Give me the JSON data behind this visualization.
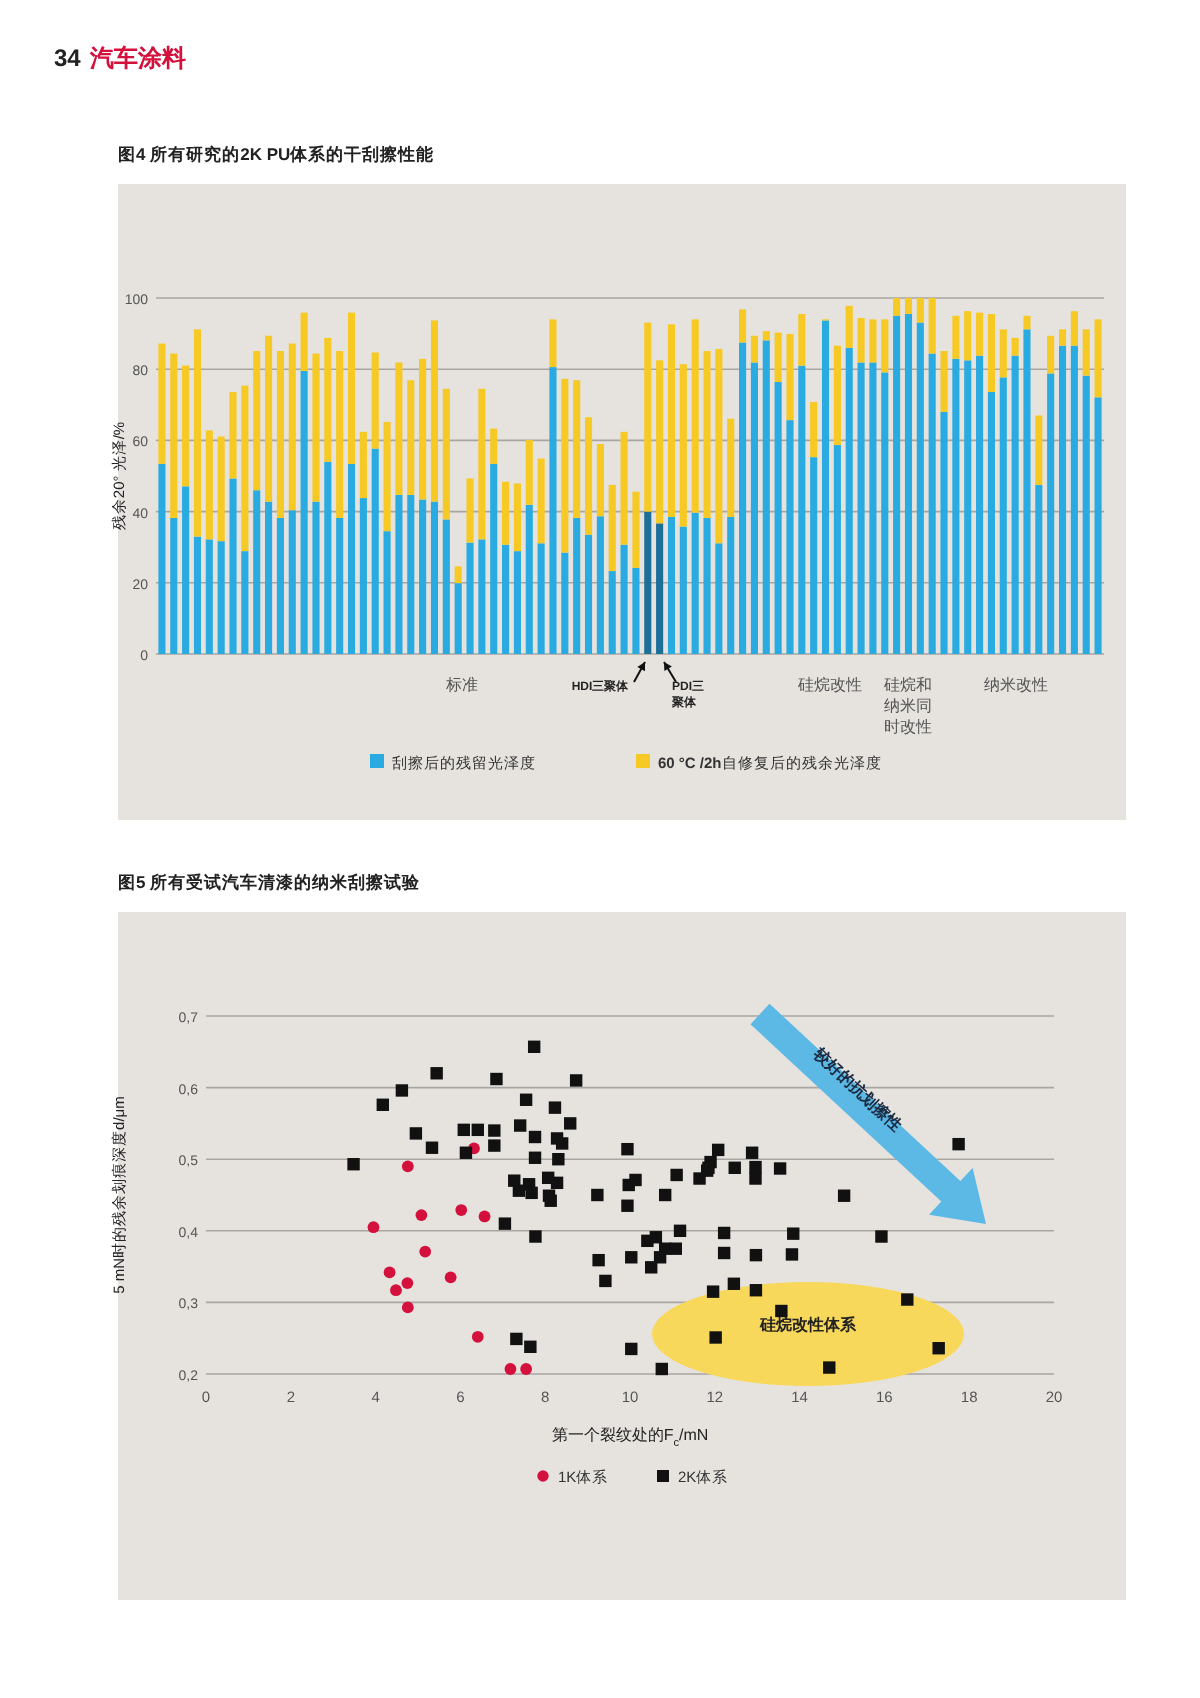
{
  "chart_data": [
    {
      "type": "bar",
      "title": "图4 所有研究的2K PU体系的干刮擦性能",
      "ylabel": "残余20° 光泽/%",
      "stacked": true,
      "grid": "y",
      "legend": "bottom",
      "ylim": [
        0,
        100
      ],
      "yticks": [
        0,
        20,
        40,
        60,
        80,
        100
      ],
      "annotations": [
        "34",
        "汽车涂料",
        "标准",
        "HDI三聚体",
        "PDI三聚体",
        "硅烷改性",
        "硅烷和纳米同时改性",
        "纳米改性"
      ],
      "categories": [
        null,
        null,
        null,
        null,
        null,
        null,
        null,
        null,
        null,
        null,
        null,
        null,
        null,
        null,
        null,
        null,
        null,
        null,
        null,
        null,
        null,
        null,
        null,
        null,
        null,
        null,
        null,
        null,
        null,
        null,
        null,
        null,
        null,
        null,
        null,
        null,
        null,
        null,
        null,
        null,
        null,
        null,
        null,
        null,
        null,
        null,
        null,
        null,
        null,
        null,
        null,
        null,
        null,
        null,
        null,
        null,
        null,
        null,
        null,
        null,
        null,
        null,
        null,
        null,
        null,
        null,
        null,
        null,
        null,
        null,
        null,
        null,
        null,
        null,
        null,
        null,
        null,
        null,
        null,
        null
      ],
      "series": [
        {
          "name": "刮擦后的残留光泽度",
          "colors": [
            "#29abe2",
            "#29abe2",
            "#29abe2",
            "#29abe2",
            "#29abe2",
            "#29abe2",
            "#29abe2",
            "#29abe2",
            "#29abe2",
            "#29abe2",
            "#29abe2",
            "#29abe2",
            "#29abe2",
            "#29abe2",
            "#29abe2",
            "#29abe2",
            "#29abe2",
            "#29abe2",
            "#29abe2",
            "#29abe2",
            "#29abe2",
            "#29abe2",
            "#29abe2",
            "#29abe2",
            "#29abe2",
            "#29abe2",
            "#29abe2",
            "#29abe2",
            "#29abe2",
            "#29abe2",
            "#29abe2",
            "#29abe2",
            "#29abe2",
            "#29abe2",
            "#29abe2",
            "#29abe2",
            "#29abe2",
            "#29abe2",
            "#29abe2",
            "#29abe2",
            "#29abe2",
            "#1b6f98",
            "#1b6f98",
            "#29abe2",
            "#29abe2",
            "#29abe2",
            "#29abe2",
            "#29abe2",
            "#29abe2",
            "#29abe2",
            "#29abe2",
            "#29abe2",
            "#29abe2",
            "#29abe2",
            "#29abe2",
            "#29abe2",
            "#29abe2",
            "#29abe2",
            "#29abe2",
            "#29abe2",
            "#29abe2",
            "#29abe2",
            "#29abe2",
            "#29abe2",
            "#29abe2",
            "#29abe2",
            "#29abe2",
            "#29abe2",
            "#29abe2",
            "#29abe2",
            "#29abe2",
            "#29abe2",
            "#29abe2",
            "#29abe2",
            "#29abe2",
            "#29abe2",
            "#29abe2",
            "#29abe2",
            "#29abe2",
            "#29abe2"
          ],
          "values": [
            53.4,
            38.2,
            47.1,
            33,
            32.2,
            31.7,
            49.3,
            28.9,
            46,
            42.8,
            38.2,
            40.4,
            79.5,
            42.8,
            54,
            38.2,
            53.4,
            43.8,
            57.7,
            34.5,
            44.7,
            44.7,
            43.4,
            42.8,
            37.8,
            19.9,
            31.3,
            32.2,
            53.4,
            30.7,
            28.9,
            41.9,
            31.1,
            80.6,
            28.5,
            38.2,
            33.5,
            38.7,
            23.3,
            30.7,
            24.2,
            40,
            36.7,
            38.5,
            35.8,
            39.7,
            38.2,
            31.1,
            38.5,
            87.5,
            81.9,
            88.1,
            76.4,
            65.7,
            81,
            55.3,
            93.7,
            58.7,
            86,
            81.9,
            81.9,
            79.1,
            95,
            95.5,
            93.1,
            84.4,
            68,
            82.9,
            82.5,
            83.8,
            73.6,
            77.7,
            83.8,
            91.2,
            47.5,
            78.8,
            86.6,
            86.6,
            78.2,
            72.1
          ]
        },
        {
          "name": "**60 °C /2h**自修复后的残余光泽度",
          "color": "#f6c924",
          "values": [
            33.8,
            46.2,
            33.9,
            58.2,
            30.6,
            29.4,
            24.3,
            46.5,
            39.1,
            46.6,
            46.9,
            46.8,
            16.4,
            41.6,
            34.8,
            46.9,
            42.5,
            18.6,
            27,
            30.7,
            37.2,
            32.2,
            39.5,
            50.9,
            36.7,
            4.7,
            18,
            42.3,
            9.9,
            17.7,
            19,
            18.2,
            23.8,
            13.4,
            48.8,
            38.7,
            33,
            20.3,
            24.2,
            31.7,
            21.4,
            53.1,
            45.8,
            54.1,
            45.6,
            54.3,
            46.9,
            54.6,
            27.6,
            9.3,
            7.5,
            2.6,
            13.9,
            24.2,
            14.5,
            15.5,
            0.3,
            27.9,
            11.8,
            12.5,
            12.1,
            14.9,
            5,
            4.5,
            6.9,
            15.6,
            17.1,
            12.1,
            13.8,
            12.1,
            21.9,
            13.5,
            5,
            3.8,
            19.5,
            10.6,
            4.6,
            9.7,
            13,
            21.9
          ]
        }
      ]
    },
    {
      "type": "scatter",
      "title": "图5 所有受试汽车清漆的纳米刮擦试验",
      "xlabel": "第一个裂纹处的F$_{c}$/mN",
      "ylabel": "5 mN时的残余划痕深度d/μm",
      "grid": "y",
      "legend": "bottom",
      "xlim": [
        0,
        20
      ],
      "xticks": [
        0,
        2,
        4,
        6,
        8,
        10,
        12,
        14,
        16,
        18,
        20
      ],
      "ylim": [
        0.2,
        0.7
      ],
      "yticks": [
        {
          "value": 0.2,
          "label": "0,2"
        },
        {
          "value": 0.3,
          "label": "0,3"
        },
        {
          "value": 0.4,
          "label": "0,4"
        },
        {
          "value": 0.5,
          "label": "0,5"
        },
        {
          "value": 0.6,
          "label": "0,6"
        },
        {
          "value": 0.7,
          "label": "0,7"
        }
      ],
      "annotations": [
        "较好的抗划擦性",
        "硅烷改性体系"
      ],
      "series": [
        {
          "name": "1K体系",
          "color": "#d4103c",
          "marker": "circle",
          "x": [
            3.95,
            4.76,
            5.08,
            6.02,
            6.57,
            6.32,
            5.17,
            4.33,
            4.75,
            4.48,
            4.76,
            5.77,
            6.41,
            7.18,
            7.55
          ],
          "values": [
            0.405,
            0.49,
            0.422,
            0.429,
            0.42,
            0.515,
            0.371,
            0.342,
            0.327,
            0.317,
            0.293,
            0.335,
            0.252,
            0.207,
            0.207
          ]
        },
        {
          "name": "2K体系",
          "color": "#111111",
          "marker": "square",
          "x": [
            3.48,
            4.17,
            4.62,
            5.44,
            6.85,
            7.74,
            8.73,
            4.95,
            5.33,
            6.08,
            6.41,
            6.8,
            6.8,
            6.13,
            7.55,
            8.23,
            8.59,
            7.41,
            7.76,
            8.28,
            8.4,
            7.76,
            8.31,
            7.27,
            7.62,
            7.38,
            7.68,
            8.07,
            8.28,
            8.09,
            8.13,
            7.05,
            7.77,
            9.23,
            9.94,
            9.97,
            10.13,
            9.94,
            9.26,
            9.42,
            10.03,
            7.32,
            7.65,
            10.03,
            10.83,
            11.1,
            10.41,
            10.61,
            11.18,
            10.5,
            10.71,
            10.83,
            11.08,
            11.64,
            11.82,
            11.9,
            12.08,
            11.85,
            12.47,
            12.88,
            12.96,
            12.96,
            13.54,
            15.05,
            17.75,
            12.22,
            12.22,
            12.97,
            13.82,
            13.85,
            15.93,
            11.96,
            12.45,
            12.97,
            13.57,
            16.54,
            12.02,
            10.75,
            14.7,
            17.28
          ],
          "values": [
            0.493,
            0.576,
            0.596,
            0.62,
            0.612,
            0.657,
            0.61,
            0.536,
            0.516,
            0.541,
            0.541,
            0.54,
            0.519,
            0.509,
            0.583,
            0.572,
            0.55,
            0.547,
            0.531,
            0.529,
            0.522,
            0.502,
            0.5,
            0.47,
            0.465,
            0.456,
            0.453,
            0.474,
            0.467,
            0.449,
            0.442,
            0.41,
            0.392,
            0.45,
            0.514,
            0.464,
            0.471,
            0.435,
            0.359,
            0.33,
            0.363,
            0.249,
            0.238,
            0.235,
            0.45,
            0.478,
            0.386,
            0.391,
            0.4,
            0.349,
            0.363,
            0.375,
            0.375,
            0.473,
            0.484,
            0.496,
            0.513,
            0.488,
            0.488,
            0.509,
            0.489,
            0.473,
            0.487,
            0.449,
            0.521,
            0.397,
            0.369,
            0.366,
            0.367,
            0.396,
            0.392,
            0.315,
            0.326,
            0.317,
            0.288,
            0.304,
            0.251,
            0.207,
            0.209,
            0.236
          ]
        }
      ]
    }
  ]
}
